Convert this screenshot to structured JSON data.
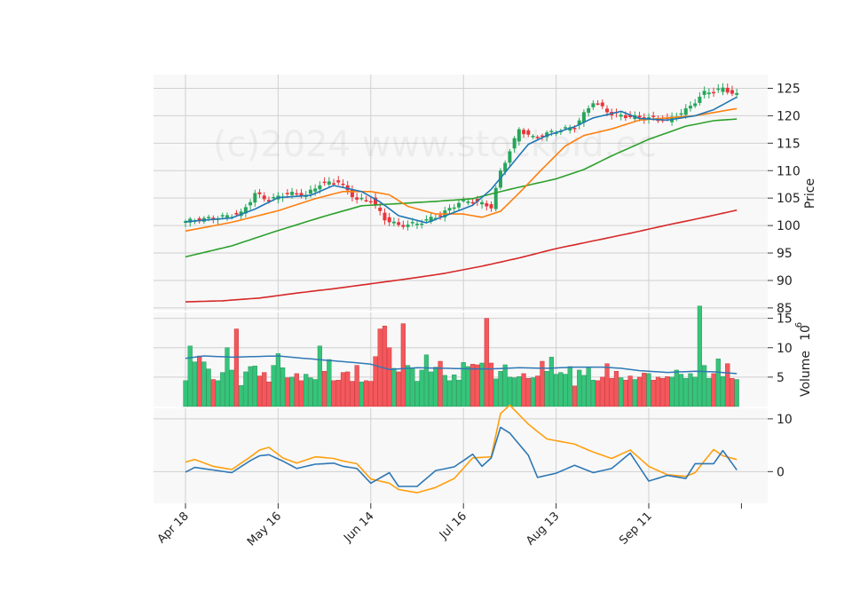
{
  "watermark": "(c)2024 www.stockoid.ec",
  "chart_data": {
    "type": "candlestick",
    "x_tick_labels": [
      "Apr 18",
      "May 16",
      "Jun 14",
      "Jul 16",
      "Aug 13",
      "Sep 11"
    ],
    "x_tick_indices": [
      0,
      20,
      40,
      60,
      80,
      100
    ],
    "n_days": 120,
    "panels": {
      "price": {
        "ylabel": "Price",
        "ylim": [
          84.5,
          127.5
        ],
        "yticks": [
          85,
          90,
          95,
          100,
          105,
          110,
          115,
          120,
          125
        ],
        "colors": {
          "up": "#26a65b",
          "down": "#e8363a",
          "ma_fast": "#1f77b4",
          "ma_mid": "#ff7f0e",
          "ma_slow": "#2ca02c",
          "ma_long": "#d62728"
        },
        "close_anchors": [
          [
            0,
            100.8
          ],
          [
            4,
            101.2
          ],
          [
            8,
            101.6
          ],
          [
            12,
            102.2
          ],
          [
            15,
            105.8
          ],
          [
            18,
            104.6
          ],
          [
            22,
            105.9
          ],
          [
            26,
            105.5
          ],
          [
            29,
            107.6
          ],
          [
            33,
            108.0
          ],
          [
            37,
            104.7
          ],
          [
            40,
            104.7
          ],
          [
            43,
            101.2
          ],
          [
            46,
            100.0
          ],
          [
            50,
            100.4
          ],
          [
            55,
            101.9
          ],
          [
            59,
            104.2
          ],
          [
            62,
            104.5
          ],
          [
            66,
            103.4
          ],
          [
            68,
            109.8
          ],
          [
            72,
            117.5
          ],
          [
            75,
            116.0
          ],
          [
            79,
            117.0
          ],
          [
            84,
            118.0
          ],
          [
            88,
            122.6
          ],
          [
            92,
            120.3
          ],
          [
            96,
            119.8
          ],
          [
            100,
            119.6
          ],
          [
            104,
            119.2
          ],
          [
            108,
            121.0
          ],
          [
            112,
            124.2
          ],
          [
            116,
            124.9
          ],
          [
            119,
            123.8
          ]
        ],
        "ma_fast_anchors": [
          [
            0,
            100.7
          ],
          [
            10,
            101.4
          ],
          [
            15,
            103.0
          ],
          [
            20,
            105.1
          ],
          [
            27,
            105.5
          ],
          [
            32,
            107.3
          ],
          [
            38,
            106.2
          ],
          [
            42,
            104.3
          ],
          [
            46,
            101.8
          ],
          [
            52,
            100.5
          ],
          [
            58,
            102.4
          ],
          [
            62,
            103.7
          ],
          [
            66,
            106.6
          ],
          [
            70,
            110.7
          ],
          [
            74,
            114.8
          ],
          [
            78,
            116.4
          ],
          [
            84,
            118.0
          ],
          [
            88,
            119.6
          ],
          [
            94,
            120.8
          ],
          [
            98,
            119.5
          ],
          [
            104,
            119.2
          ],
          [
            110,
            120.0
          ],
          [
            114,
            121.1
          ],
          [
            119,
            123.4
          ]
        ],
        "ma_mid_anchors": [
          [
            0,
            99.0
          ],
          [
            10,
            100.6
          ],
          [
            20,
            102.7
          ],
          [
            28,
            104.9
          ],
          [
            34,
            106.2
          ],
          [
            40,
            106.2
          ],
          [
            44,
            105.6
          ],
          [
            48,
            103.5
          ],
          [
            54,
            102.1
          ],
          [
            60,
            102.1
          ],
          [
            64,
            101.5
          ],
          [
            68,
            102.6
          ],
          [
            72,
            105.9
          ],
          [
            77,
            110.3
          ],
          [
            82,
            114.5
          ],
          [
            86,
            116.4
          ],
          [
            92,
            117.6
          ],
          [
            98,
            119.2
          ],
          [
            104,
            119.6
          ],
          [
            110,
            120.0
          ],
          [
            119,
            121.3
          ]
        ],
        "ma_slow_anchors": [
          [
            0,
            94.3
          ],
          [
            10,
            96.3
          ],
          [
            20,
            99.1
          ],
          [
            30,
            101.7
          ],
          [
            38,
            103.6
          ],
          [
            46,
            104.0
          ],
          [
            54,
            104.4
          ],
          [
            62,
            104.9
          ],
          [
            70,
            106.6
          ],
          [
            80,
            108.5
          ],
          [
            86,
            110.2
          ],
          [
            92,
            112.7
          ],
          [
            100,
            115.7
          ],
          [
            108,
            118.1
          ],
          [
            114,
            119.1
          ],
          [
            119,
            119.4
          ]
        ],
        "ma_long_anchors": [
          [
            0,
            86.1
          ],
          [
            8,
            86.3
          ],
          [
            16,
            86.8
          ],
          [
            24,
            87.7
          ],
          [
            32,
            88.5
          ],
          [
            40,
            89.4
          ],
          [
            48,
            90.3
          ],
          [
            56,
            91.3
          ],
          [
            64,
            92.6
          ],
          [
            72,
            94.1
          ],
          [
            80,
            95.8
          ],
          [
            88,
            97.2
          ],
          [
            96,
            98.6
          ],
          [
            104,
            100.1
          ],
          [
            112,
            101.5
          ],
          [
            119,
            102.8
          ]
        ]
      },
      "volume": {
        "ylabel": "Volume",
        "ylabel_exponent": "10",
        "ylabel_power": "6",
        "ylim": [
          0,
          16
        ],
        "yticks": [
          5,
          10,
          15
        ],
        "values": [
          4.4,
          10.3,
          7.6,
          8.6,
          7.6,
          6.4,
          4.6,
          4.4,
          5.8,
          10.0,
          6.2,
          13.2,
          3.6,
          5.9,
          6.8,
          6.9,
          5.2,
          5.8,
          4.2,
          7.0,
          9.0,
          6.6,
          4.9,
          5.0,
          5.6,
          4.4,
          5.5,
          4.9,
          4.6,
          10.3,
          6.0,
          8.0,
          4.4,
          4.5,
          5.8,
          5.9,
          4.3,
          7.0,
          4.2,
          4.4,
          4.3,
          8.5,
          13.2,
          13.7,
          10.0,
          6.5,
          5.9,
          14.1,
          7.0,
          6.6,
          4.3,
          6.2,
          8.8,
          5.9,
          6.7,
          7.7,
          5.3,
          4.4,
          5.4,
          4.5,
          7.5,
          6.8,
          7.2,
          7.1,
          7.4,
          15.0,
          7.4,
          4.7,
          6.0,
          7.1,
          5.0,
          4.9,
          5.1,
          5.6,
          4.8,
          4.9,
          5.2,
          7.7,
          6.0,
          8.4,
          5.5,
          5.8,
          5.5,
          6.8,
          3.5,
          6.2,
          5.3,
          6.7,
          4.5,
          4.4,
          5.0,
          7.3,
          4.8,
          6.0,
          4.9,
          4.5,
          5.2,
          4.6,
          5.0,
          5.7,
          5.6,
          4.5,
          5.0,
          4.8,
          5.1,
          5.0,
          6.2,
          5.5,
          4.8,
          5.6,
          5.0,
          17.1,
          7.0,
          4.8,
          5.6,
          8.1,
          5.1,
          7.3,
          4.8,
          4.6
        ],
        "avg_anchors": [
          [
            0,
            8.2
          ],
          [
            4,
            8.6
          ],
          [
            10,
            8.4
          ],
          [
            20,
            8.6
          ],
          [
            24,
            8.3
          ],
          [
            30,
            7.9
          ],
          [
            36,
            7.5
          ],
          [
            40,
            7.2
          ],
          [
            44,
            6.3
          ],
          [
            50,
            6.6
          ],
          [
            56,
            6.5
          ],
          [
            62,
            6.4
          ],
          [
            66,
            6.4
          ],
          [
            72,
            6.6
          ],
          [
            78,
            6.5
          ],
          [
            84,
            6.7
          ],
          [
            90,
            6.7
          ],
          [
            94,
            6.5
          ],
          [
            98,
            6.1
          ],
          [
            104,
            5.8
          ],
          [
            110,
            6.0
          ],
          [
            114,
            5.9
          ],
          [
            119,
            5.6
          ]
        ]
      },
      "indicator": {
        "ylim": [
          -6,
          12
        ],
        "yticks": [
          0,
          10
        ],
        "colors": {
          "line_a": "#ff9f0e",
          "line_b": "#2f78b5"
        },
        "line_a_anchors": [
          [
            0,
            1.8
          ],
          [
            2,
            2.3
          ],
          [
            6,
            1.0
          ],
          [
            10,
            0.4
          ],
          [
            14,
            2.8
          ],
          [
            16,
            4.1
          ],
          [
            18,
            4.6
          ],
          [
            21,
            2.6
          ],
          [
            24,
            1.6
          ],
          [
            28,
            2.8
          ],
          [
            32,
            2.5
          ],
          [
            34,
            2.0
          ],
          [
            37,
            1.5
          ],
          [
            40,
            -1.4
          ],
          [
            44,
            -2.2
          ],
          [
            46,
            -3.4
          ],
          [
            50,
            -4.0
          ],
          [
            54,
            -3.0
          ],
          [
            58,
            -1.3
          ],
          [
            62,
            2.6
          ],
          [
            66,
            2.8
          ],
          [
            68,
            11.0
          ],
          [
            70,
            12.6
          ],
          [
            74,
            9.0
          ],
          [
            78,
            6.2
          ],
          [
            84,
            5.2
          ],
          [
            88,
            3.7
          ],
          [
            92,
            2.5
          ],
          [
            96,
            4.1
          ],
          [
            100,
            1.0
          ],
          [
            104,
            -0.6
          ],
          [
            108,
            -0.9
          ],
          [
            110,
            -0.2
          ],
          [
            114,
            4.2
          ],
          [
            116,
            3.0
          ],
          [
            119,
            2.3
          ]
        ],
        "line_b_anchors": [
          [
            0,
            -0.1
          ],
          [
            2,
            0.8
          ],
          [
            6,
            0.3
          ],
          [
            10,
            -0.2
          ],
          [
            14,
            2.1
          ],
          [
            16,
            3.0
          ],
          [
            18,
            3.2
          ],
          [
            21,
            2.0
          ],
          [
            24,
            0.6
          ],
          [
            28,
            1.4
          ],
          [
            32,
            1.6
          ],
          [
            34,
            1.0
          ],
          [
            37,
            0.6
          ],
          [
            40,
            -2.2
          ],
          [
            44,
            -0.2
          ],
          [
            46,
            -2.8
          ],
          [
            50,
            -2.8
          ],
          [
            54,
            0.2
          ],
          [
            58,
            0.9
          ],
          [
            62,
            3.3
          ],
          [
            64,
            1.0
          ],
          [
            66,
            2.6
          ],
          [
            68,
            8.4
          ],
          [
            70,
            7.3
          ],
          [
            74,
            3.1
          ],
          [
            76,
            -1.1
          ],
          [
            80,
            -0.3
          ],
          [
            84,
            1.2
          ],
          [
            88,
            -0.2
          ],
          [
            92,
            0.6
          ],
          [
            96,
            3.5
          ],
          [
            100,
            -1.8
          ],
          [
            104,
            -0.7
          ],
          [
            108,
            -1.3
          ],
          [
            110,
            1.5
          ],
          [
            114,
            1.5
          ],
          [
            116,
            4.0
          ],
          [
            119,
            0.3
          ]
        ]
      }
    }
  }
}
